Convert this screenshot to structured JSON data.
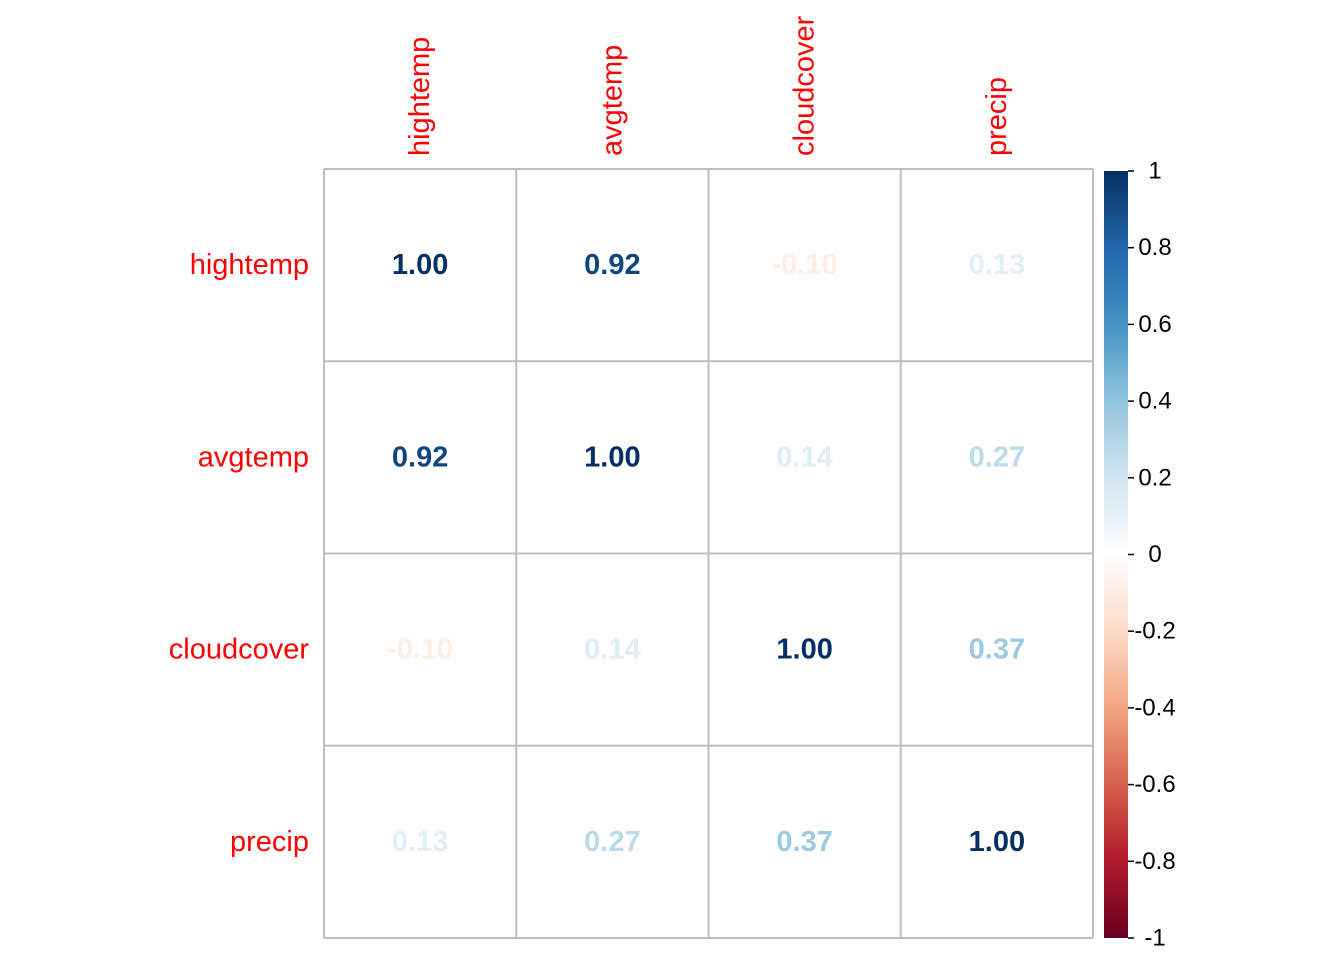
{
  "chart_data": {
    "type": "heatmap",
    "title": "",
    "variables": [
      "hightemp",
      "avgtemp",
      "cloudcover",
      "precip"
    ],
    "matrix": [
      [
        1.0,
        0.92,
        -0.1,
        0.13
      ],
      [
        0.92,
        1.0,
        0.14,
        0.27
      ],
      [
        -0.1,
        0.14,
        1.0,
        0.37
      ],
      [
        0.13,
        0.27,
        0.37,
        1.0
      ]
    ],
    "value_labels": [
      [
        "1.00",
        "0.92",
        "-0.10",
        "0.13"
      ],
      [
        "0.92",
        "1.00",
        "0.14",
        "0.27"
      ],
      [
        "-0.10",
        "0.14",
        "1.00",
        "0.37"
      ],
      [
        "0.13",
        "0.27",
        "0.37",
        "1.00"
      ]
    ],
    "color_range": [
      -1,
      1
    ],
    "colorbar": {
      "ticks": [
        1,
        0.8,
        0.6,
        0.4,
        0.2,
        0,
        -0.2,
        -0.4,
        -0.6,
        -0.8,
        -1
      ],
      "tick_labels": [
        "1",
        "0.8",
        "0.6",
        "0.4",
        "0.2",
        "0",
        "-0.2",
        "-0.4",
        "-0.6",
        "-0.8",
        "-1"
      ],
      "placement": "right"
    },
    "grid": true,
    "label_color": "#FF0000",
    "palette": {
      "negative_end": "#67001F",
      "mid_neg_1": "#B2182B",
      "mid_neg_2": "#D6604D",
      "mid_neg_3": "#F4A582",
      "mid_neg_4": "#FDDBC7",
      "center": "#FFFFFF",
      "mid_pos_4": "#D1E5F0",
      "mid_pos_3": "#92C5DE",
      "mid_pos_2": "#4393C3",
      "mid_pos_1": "#2166AC",
      "positive_end": "#053061"
    },
    "grid_color": "#BEBEBE"
  }
}
